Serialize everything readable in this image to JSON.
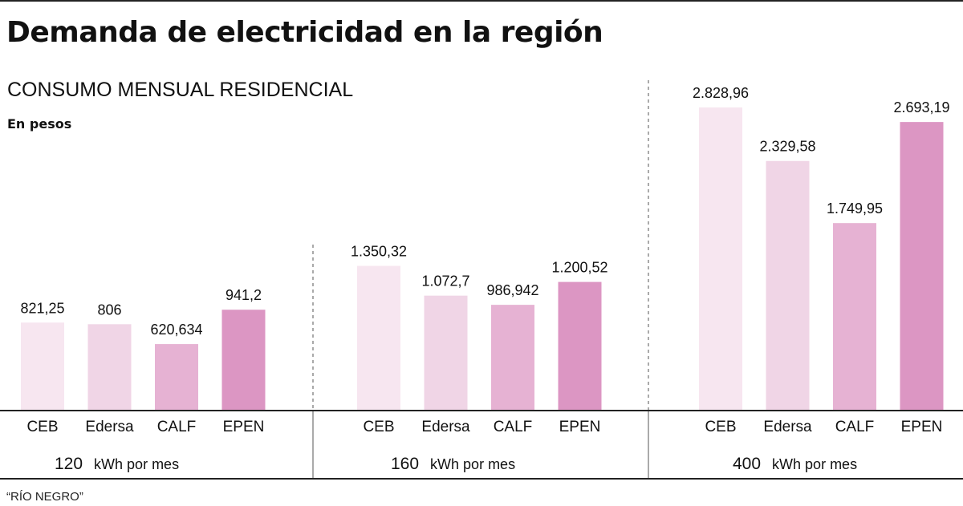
{
  "header": {
    "title": "Demanda de electricidad en la región",
    "subtitle": "CONSUMO MENSUAL RESIDENCIAL",
    "unit": "En pesos"
  },
  "footer": {
    "source": "“RÍO NEGRO”"
  },
  "colors": {
    "CEB": "#f7e6f0",
    "Edersa": "#f0d5e6",
    "CALF": "#e6b2d3",
    "EPEN": "#dc96c3"
  },
  "chart_data": {
    "type": "bar",
    "categories": [
      "CEB",
      "Edersa",
      "CALF",
      "EPEN"
    ],
    "unit": "En pesos",
    "ylim": [
      0,
      2828.96
    ],
    "groups": [
      {
        "number": "120",
        "suffix": "kWh por mes",
        "values": [
          821.25,
          806,
          620.634,
          941.2
        ],
        "labels": [
          "821,25",
          "806",
          "620,634",
          "941,2"
        ]
      },
      {
        "number": "160",
        "suffix": "kWh por mes",
        "values": [
          1350.32,
          1072.7,
          986.942,
          1200.52
        ],
        "labels": [
          "1.350,32",
          "1.072,7",
          "986,942",
          "1.200,52"
        ]
      },
      {
        "number": "400",
        "suffix": "kWh por mes",
        "values": [
          2828.96,
          2329.58,
          1749.95,
          2693.19
        ],
        "labels": [
          "2.828,96",
          "2.329,58",
          "1.749,95",
          "2.693,19"
        ]
      }
    ]
  }
}
